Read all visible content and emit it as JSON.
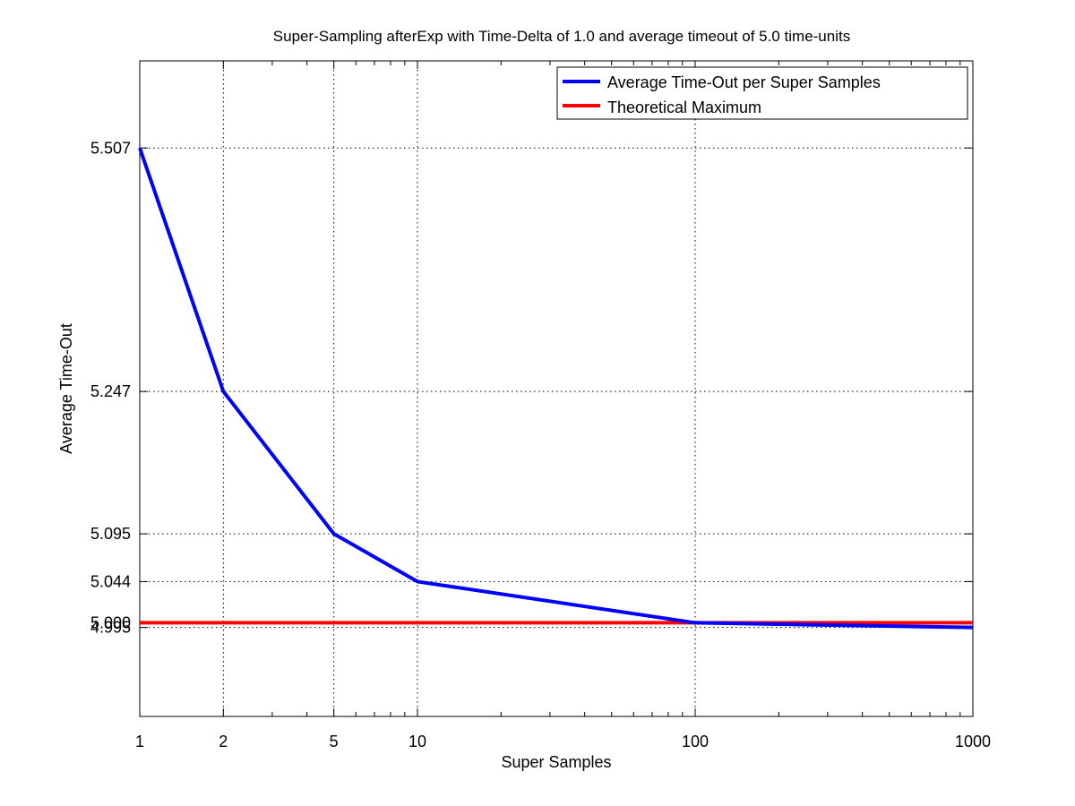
{
  "chart_data": {
    "type": "line",
    "title": "Super-Sampling afterExp with Time-Delta of 1.0 and average timeout of 5.0 time-units",
    "xlabel": "Super Samples",
    "ylabel": "Average Time-Out",
    "x_scale": "log",
    "xlim": [
      1,
      1000
    ],
    "ylim": [
      4.9,
      5.6
    ],
    "x_ticks": [
      1,
      2,
      5,
      10,
      100,
      1000
    ],
    "x_tick_labels": [
      "1",
      "2",
      "5",
      "10",
      "100",
      "1000"
    ],
    "y_ticks": [
      4.995,
      5.0,
      5.044,
      5.095,
      5.247,
      5.507
    ],
    "y_tick_labels": [
      "4.995",
      "5.000",
      "5.044",
      "5.095",
      "5.247",
      "5.507"
    ],
    "grid": true,
    "legend_position": "top-right",
    "x": [
      1,
      2,
      5,
      10,
      100,
      1000
    ],
    "series": [
      {
        "name": "Average Time-Out per Super Samples",
        "color": "#0000ff",
        "values": [
          5.507,
          5.247,
          5.095,
          5.044,
          5.0,
          4.995
        ]
      },
      {
        "name": "Theoretical Maximum",
        "color": "#ff0000",
        "values": [
          5.0,
          5.0,
          5.0,
          5.0,
          5.0,
          5.0
        ]
      }
    ]
  }
}
